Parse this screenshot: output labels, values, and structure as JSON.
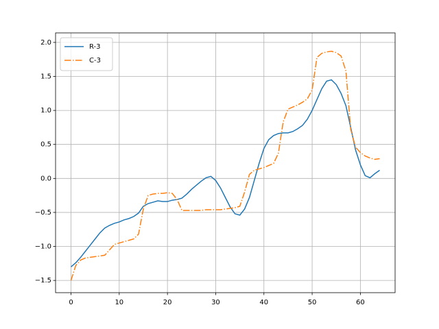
{
  "chart_data": {
    "type": "line",
    "x": [
      0,
      1,
      2,
      3,
      4,
      5,
      6,
      7,
      8,
      9,
      10,
      11,
      12,
      13,
      14,
      15,
      16,
      17,
      18,
      19,
      20,
      21,
      22,
      23,
      24,
      25,
      26,
      27,
      28,
      29,
      30,
      31,
      32,
      33,
      34,
      35,
      36,
      37,
      38,
      39,
      40,
      41,
      42,
      43,
      44,
      45,
      46,
      47,
      48,
      49,
      50,
      51,
      52,
      53,
      54,
      55,
      56,
      57,
      58,
      59,
      60,
      61,
      62,
      63,
      64
    ],
    "series": [
      {
        "name": "R-3",
        "color": "#1f77b4",
        "linestyle": "solid",
        "values": [
          -1.3,
          -1.24,
          -1.16,
          -1.07,
          -0.98,
          -0.89,
          -0.8,
          -0.73,
          -0.69,
          -0.66,
          -0.64,
          -0.61,
          -0.59,
          -0.56,
          -0.51,
          -0.41,
          -0.37,
          -0.35,
          -0.33,
          -0.34,
          -0.34,
          -0.32,
          -0.31,
          -0.29,
          -0.23,
          -0.16,
          -0.1,
          -0.04,
          0.01,
          0.03,
          -0.03,
          -0.14,
          -0.28,
          -0.42,
          -0.52,
          -0.54,
          -0.45,
          -0.28,
          -0.03,
          0.22,
          0.44,
          0.57,
          0.63,
          0.66,
          0.67,
          0.67,
          0.69,
          0.73,
          0.78,
          0.87,
          1.0,
          1.16,
          1.32,
          1.43,
          1.45,
          1.38,
          1.25,
          1.07,
          0.75,
          0.42,
          0.2,
          0.04,
          0.01,
          0.07,
          0.12
        ]
      },
      {
        "name": "C-3",
        "color": "#ff7f0e",
        "linestyle": "dashdot",
        "values": [
          -1.5,
          -1.28,
          -1.2,
          -1.17,
          -1.16,
          -1.15,
          -1.14,
          -1.13,
          -1.05,
          -0.97,
          -0.95,
          -0.93,
          -0.91,
          -0.89,
          -0.82,
          -0.45,
          -0.25,
          -0.23,
          -0.22,
          -0.22,
          -0.21,
          -0.22,
          -0.31,
          -0.47,
          -0.47,
          -0.47,
          -0.47,
          -0.47,
          -0.46,
          -0.46,
          -0.46,
          -0.46,
          -0.45,
          -0.44,
          -0.43,
          -0.41,
          -0.2,
          0.06,
          0.12,
          0.14,
          0.16,
          0.19,
          0.22,
          0.37,
          0.83,
          1.02,
          1.05,
          1.08,
          1.12,
          1.17,
          1.3,
          1.78,
          1.84,
          1.86,
          1.87,
          1.85,
          1.8,
          1.58,
          0.72,
          0.46,
          0.38,
          0.33,
          0.3,
          0.28,
          0.29
        ]
      }
    ],
    "xlim": [
      -3.2,
      67.2
    ],
    "xticks": [
      0,
      10,
      20,
      30,
      40,
      50,
      60
    ],
    "ylim": [
      -1.68,
      2.14
    ],
    "yticks": [
      {
        "value": -1.5,
        "label": "−1.5"
      },
      {
        "value": -1.0,
        "label": "−1.0"
      },
      {
        "value": -0.5,
        "label": "−0.5"
      },
      {
        "value": 0,
        "label": "0.0"
      },
      0.5,
      {
        "value": 1.0,
        "label": "1.0"
      },
      1.5,
      {
        "value": 2.0,
        "label": "2.0"
      }
    ],
    "grid": true,
    "legend": "upper left"
  }
}
